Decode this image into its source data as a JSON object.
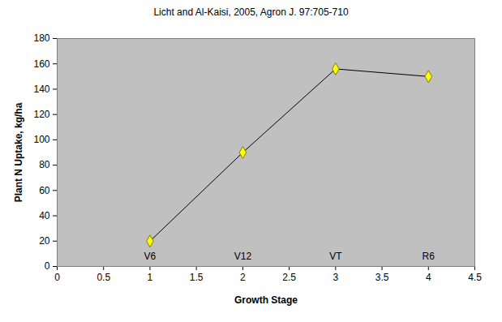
{
  "chart_data": {
    "type": "line",
    "title": "Licht and Al-Kaisi, 2005, Agron J. 97:705-710",
    "x_label": "Growth Stage",
    "y_label": "Plant N Uptake, kg/ha",
    "x": [
      1,
      2,
      3,
      4
    ],
    "values": [
      20,
      90,
      156,
      150
    ],
    "point_labels": [
      "V6",
      "V12",
      "VT",
      "R6"
    ],
    "color": "#000000",
    "marker": "diamond",
    "xlim": [
      0,
      4.5
    ],
    "xticks": [
      0,
      0.5,
      1,
      1.5,
      2,
      2.5,
      3,
      3.5,
      4,
      4.5
    ],
    "ylim": [
      0,
      180
    ],
    "yticks": [
      0,
      20,
      40,
      60,
      80,
      100,
      120,
      140,
      160,
      180
    ],
    "grid": false
  }
}
